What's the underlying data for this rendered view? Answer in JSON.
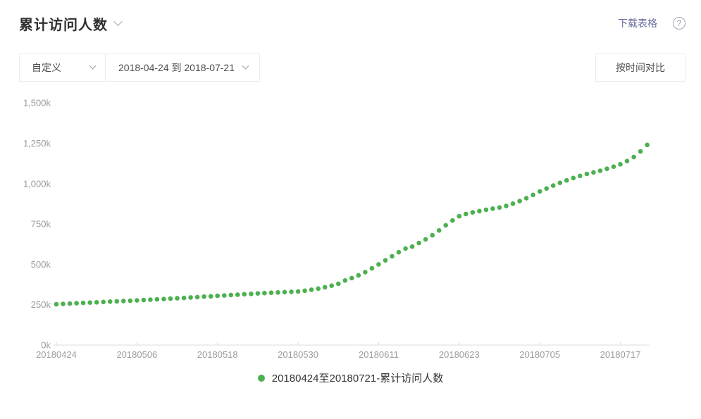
{
  "header": {
    "title": "累计访问人数",
    "download_label": "下载表格",
    "help_glyph": "?"
  },
  "filters": {
    "range_type": "自定义",
    "date_range": "2018-04-24 到 2018-07-21",
    "compare_button": "按时间对比"
  },
  "legend": {
    "label": "20180424至20180721-累计访问人数"
  },
  "colors": {
    "series_green": "#4cb050",
    "link_purple": "#686d9e",
    "axis_line": "#dcdcdc",
    "axis_text": "#9b9b9b"
  },
  "chart_data": {
    "type": "scatter",
    "title": "累计访问人数",
    "legend_entry": "20180424至20180721-累计访问人数",
    "legend_position": "bottom-center",
    "grid": false,
    "unit": "k",
    "start_date": "20180424",
    "end_date": "20180721",
    "interval": "daily",
    "xlabel": "",
    "ylabel": "",
    "ylim": [
      0,
      1500
    ],
    "y_ticks_k": [
      0,
      250,
      500,
      750,
      1000,
      1250,
      1500
    ],
    "y_tick_labels": [
      "0k",
      "250k",
      "500k",
      "750k",
      "1,000k",
      "1,250k",
      "1,500k"
    ],
    "x_tick_labels": [
      "20180424",
      "20180506",
      "20180518",
      "20180530",
      "20180611",
      "20180623",
      "20180705",
      "20180717"
    ],
    "x_tick_every_n_points": 12,
    "values_k": [
      253,
      255,
      257,
      259,
      261,
      263,
      265,
      267,
      269,
      271,
      273,
      275,
      277,
      279,
      281,
      283,
      285,
      288,
      290,
      292,
      295,
      297,
      300,
      302,
      305,
      307,
      310,
      312,
      315,
      317,
      320,
      322,
      324,
      326,
      328,
      330,
      332,
      337,
      343,
      350,
      358,
      368,
      380,
      400,
      415,
      432,
      452,
      475,
      500,
      525,
      550,
      575,
      598,
      610,
      632,
      655,
      680,
      710,
      742,
      772,
      798,
      812,
      822,
      830,
      838,
      845,
      852,
      862,
      876,
      892,
      910,
      930,
      952,
      970,
      988,
      1005,
      1020,
      1035,
      1048,
      1060,
      1070,
      1080,
      1092,
      1105,
      1120,
      1140,
      1165,
      1200,
      1240
    ]
  }
}
